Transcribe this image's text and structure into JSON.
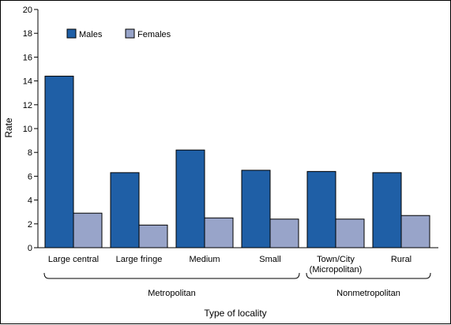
{
  "chart_data": {
    "type": "bar",
    "xlabel": "Type of locality",
    "ylabel": "Rate",
    "ylim": [
      0,
      20
    ],
    "yticks": [
      0,
      2,
      4,
      6,
      8,
      10,
      12,
      14,
      16,
      18,
      20
    ],
    "grid": false,
    "legend_position": "top-left",
    "categories": [
      "Large central",
      "Large fringe",
      "Medium",
      "Small",
      "Town/City (Micropolitan)",
      "Rural"
    ],
    "category_lines": [
      [
        "Large central"
      ],
      [
        "Large fringe"
      ],
      [
        "Medium"
      ],
      [
        "Small"
      ],
      [
        "Town/City",
        "(Micropolitan)"
      ],
      [
        "Rural"
      ]
    ],
    "series": [
      {
        "name": "Males",
        "color": "#1f5fa6",
        "values": [
          14.4,
          6.3,
          8.2,
          6.5,
          6.4,
          6.3
        ]
      },
      {
        "name": "Females",
        "color": "#98a4c9",
        "values": [
          2.9,
          1.9,
          2.5,
          2.4,
          2.4,
          2.7
        ]
      }
    ],
    "groups": [
      {
        "label": "Metropolitan",
        "categories": [
          0,
          1,
          2,
          3
        ]
      },
      {
        "label": "Nonmetropolitan",
        "categories": [
          4,
          5
        ]
      }
    ]
  }
}
